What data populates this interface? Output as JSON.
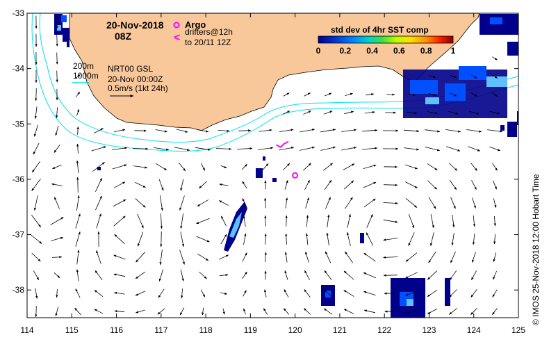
{
  "title": {
    "date": "20-Nov-2018",
    "time": "08Z"
  },
  "legend": {
    "argo_label": "Argo",
    "drifters_line1": "drifters@12h",
    "drifters_line2": "to 20/11 12Z",
    "drifter_glyph": "<"
  },
  "isobaths": {
    "label_200": "200m",
    "label_1000": "1000m"
  },
  "velocity_info": {
    "line1": "NRT00 GSL",
    "line2": "20-Nov 00:00Z",
    "line3": "0.5m/s (1kt 24h)"
  },
  "colorbar": {
    "title": "std dev of 4hr SST comp",
    "ticks": [
      "0",
      "0.2",
      "0.4",
      "0.6",
      "0.8",
      "1"
    ],
    "colors": [
      "#00008b",
      "#0033cc",
      "#0080ff",
      "#00d0d0",
      "#40e040",
      "#c0ff00",
      "#ffe000",
      "#ff9000",
      "#ff2000",
      "#8b0000"
    ]
  },
  "axes": {
    "x_ticks": [
      "114",
      "115",
      "116",
      "117",
      "118",
      "119",
      "120",
      "121",
      "122",
      "123",
      "124",
      "125"
    ],
    "y_ticks": [
      "-33",
      "-34",
      "-35",
      "-36",
      "-37",
      "-38"
    ],
    "lon_range": [
      114,
      125
    ],
    "lat_range": [
      -38.5,
      -33
    ]
  },
  "credit": "©  IMOS 25-Nov-2018 12:00 Hobart Time",
  "colors": {
    "land": "#f8c89a",
    "isobath": "#00e0f0",
    "argo": "#ff00ff",
    "sst_dark": "#00008b",
    "sst_mid": "#0050ff",
    "sst_light": "#60c0ff"
  },
  "map_data": {
    "argo_floats": [
      {
        "lon": 120.0,
        "lat": -35.93
      }
    ],
    "drifter_track": [
      {
        "lon": 119.58,
        "lat": -35.38
      },
      {
        "lon": 119.68,
        "lat": -35.42
      },
      {
        "lon": 119.75,
        "lat": -35.36
      },
      {
        "lon": 119.85,
        "lat": -35.32
      }
    ]
  }
}
